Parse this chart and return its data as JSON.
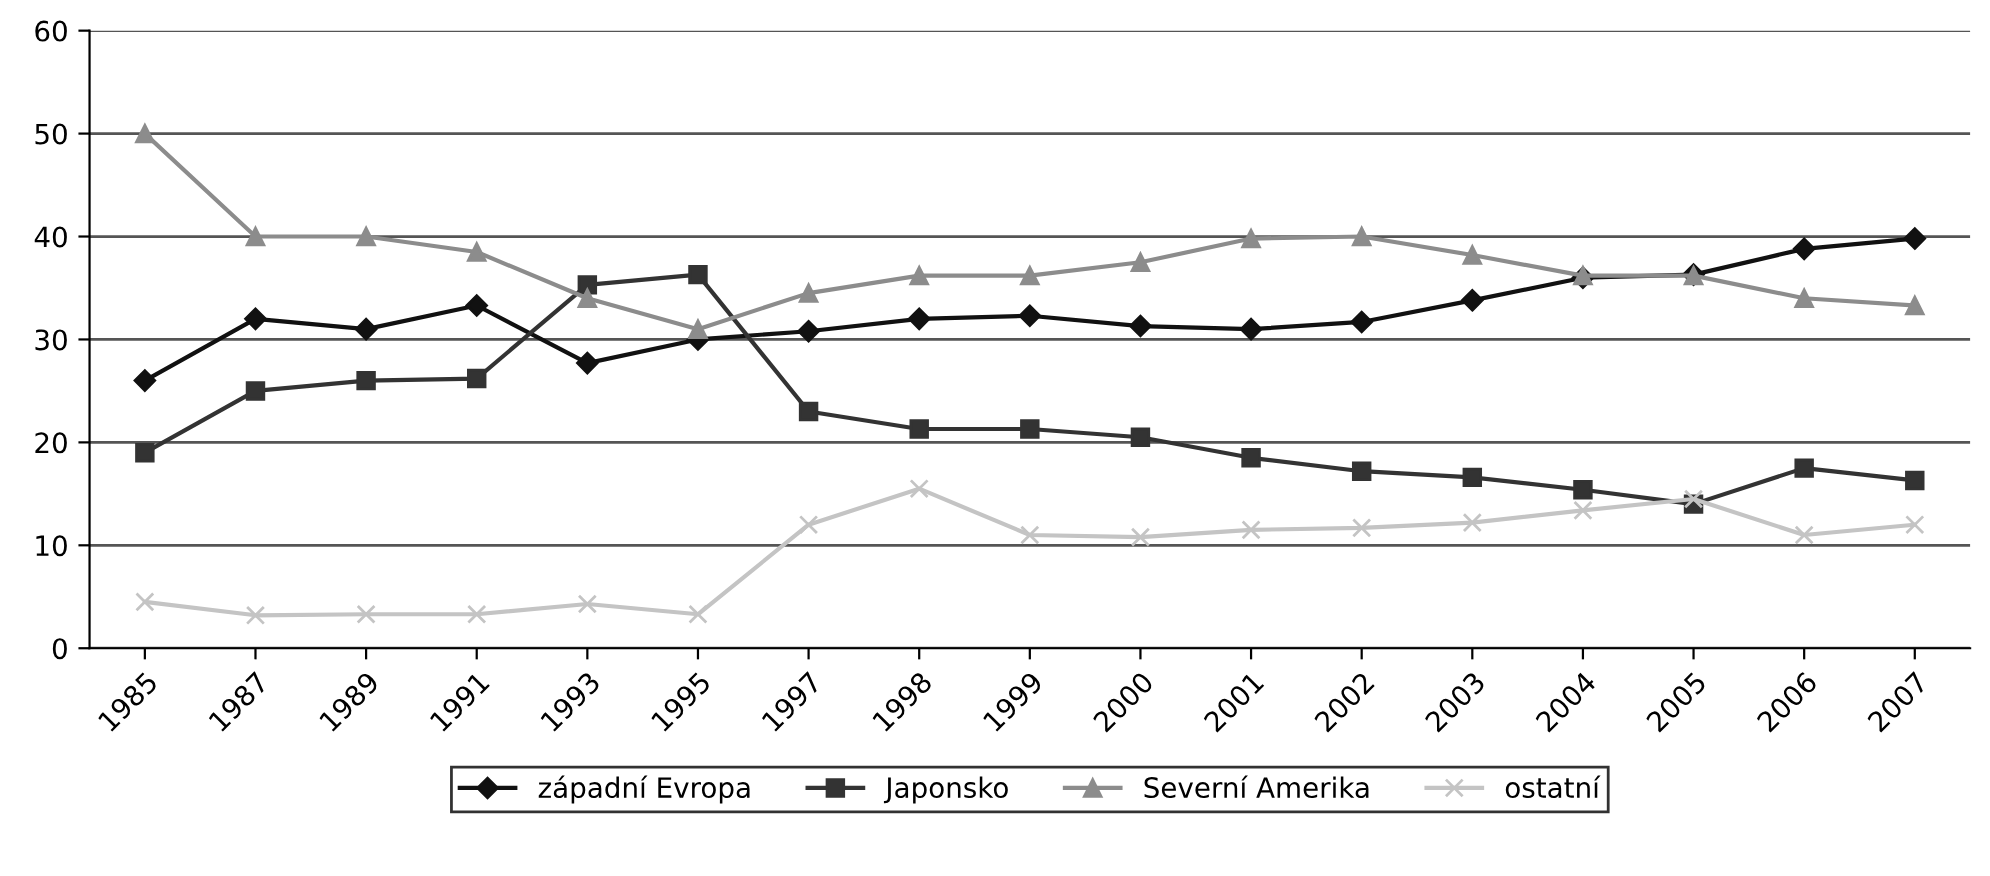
{
  "chart_data": {
    "type": "line",
    "categories": [
      "1985",
      "1987",
      "1989",
      "1991",
      "1993",
      "1995",
      "1997",
      "1998",
      "1999",
      "2000",
      "2001",
      "2002",
      "2003",
      "2004",
      "2005",
      "2006",
      "2007"
    ],
    "ylim": [
      0,
      60
    ],
    "yticks": [
      0,
      10,
      20,
      30,
      40,
      50,
      60
    ],
    "grid": "y",
    "legend": "bottom",
    "series": [
      {
        "name": "západní Evropa",
        "color": "#111111",
        "marker": "diamond",
        "values": [
          26,
          32,
          31,
          33.3,
          27.7,
          30,
          30.8,
          32,
          32.3,
          31.3,
          31,
          31.7,
          33.8,
          36,
          36.3,
          38.8,
          39.8
        ]
      },
      {
        "name": "Japonsko",
        "color": "#333333",
        "marker": "square",
        "values": [
          19,
          25,
          26,
          26.2,
          35.3,
          36.3,
          23,
          21.3,
          21.3,
          20.5,
          18.5,
          17.2,
          16.6,
          15.4,
          14,
          17.5,
          16.3
        ]
      },
      {
        "name": "Severní Amerika",
        "color": "#8c8c8c",
        "marker": "triangle",
        "values": [
          50,
          40,
          40,
          38.5,
          34,
          31,
          34.5,
          36.2,
          36.2,
          37.5,
          39.8,
          40,
          38.2,
          36.2,
          36.2,
          34,
          33.3
        ]
      },
      {
        "name": "ostatní",
        "color": "#c4c4c4",
        "marker": "cross",
        "values": [
          4.5,
          3.2,
          3.3,
          3.3,
          4.3,
          3.3,
          12,
          15.5,
          11,
          10.8,
          11.5,
          11.7,
          12.2,
          13.4,
          14.5,
          11,
          12
        ]
      }
    ]
  }
}
